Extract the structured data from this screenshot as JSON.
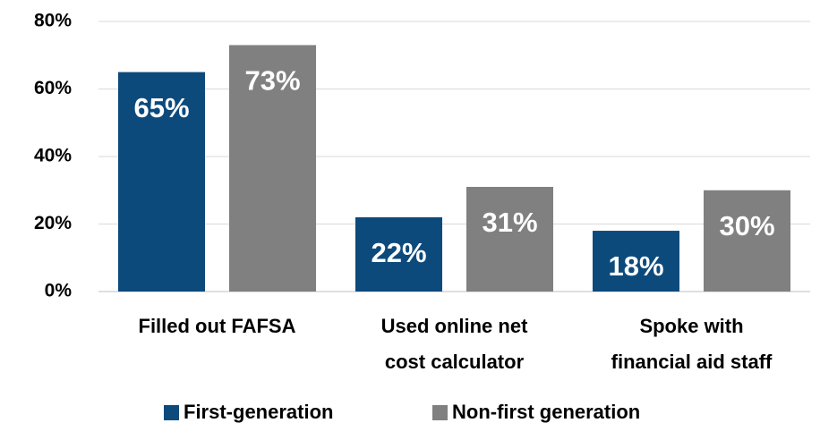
{
  "chart_data": {
    "type": "bar",
    "categories": [
      "Filled out FAFSA",
      "Used online net\ncost calculator",
      "Spoke with\nfinancial aid staff"
    ],
    "series": [
      {
        "name": "First-generation",
        "color": "#0d4a7c",
        "values": [
          65,
          22,
          18
        ],
        "value_labels": [
          "65%",
          "22%",
          "18%"
        ]
      },
      {
        "name": "Non-first generation",
        "color": "#808080",
        "values": [
          73,
          31,
          30
        ],
        "value_labels": [
          "73%",
          "31%",
          "30%"
        ]
      }
    ],
    "ylim": [
      0,
      80
    ],
    "yticks": [
      {
        "value": 0,
        "label": "0%"
      },
      {
        "value": 20,
        "label": "20%"
      },
      {
        "value": 40,
        "label": "40%"
      },
      {
        "value": 60,
        "label": "60%"
      },
      {
        "value": 80,
        "label": "80%"
      }
    ],
    "grid": true,
    "legend": "bottom"
  }
}
